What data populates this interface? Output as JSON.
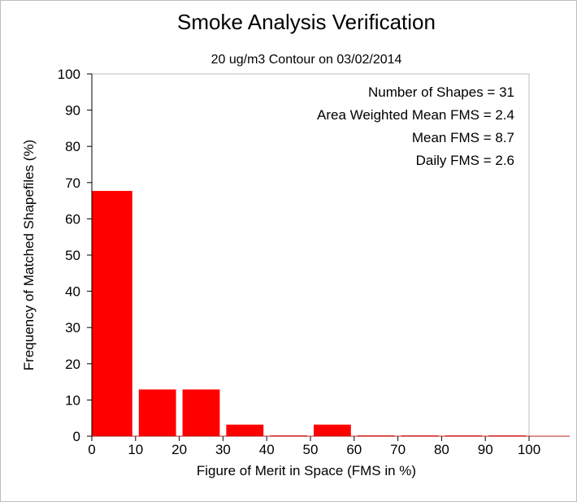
{
  "chart_data": {
    "type": "bar",
    "title": "Smoke Analysis Verification",
    "subtitle": "20 ug/m3 Contour on 03/02/2014",
    "xlabel": "Figure of Merit in Space (FMS in %)",
    "ylabel": "Frequency of Matched Shapefiles (%)",
    "xlim": [
      0,
      100
    ],
    "ylim": [
      0,
      100
    ],
    "x_ticks": [
      "0",
      "10",
      "20",
      "30",
      "40",
      "50",
      "60",
      "70",
      "80",
      "90",
      "100"
    ],
    "y_ticks": [
      "0",
      "10",
      "20",
      "30",
      "40",
      "50",
      "60",
      "70",
      "80",
      "90",
      "100"
    ],
    "bins": [
      {
        "start": 0,
        "end": 10,
        "value": 67.7
      },
      {
        "start": 10,
        "end": 20,
        "value": 12.9
      },
      {
        "start": 20,
        "end": 30,
        "value": 12.9
      },
      {
        "start": 30,
        "end": 40,
        "value": 3.2
      },
      {
        "start": 40,
        "end": 50,
        "value": 0
      },
      {
        "start": 50,
        "end": 60,
        "value": 3.2
      },
      {
        "start": 60,
        "end": 70,
        "value": 0
      },
      {
        "start": 70,
        "end": 80,
        "value": 0
      },
      {
        "start": 80,
        "end": 90,
        "value": 0
      },
      {
        "start": 90,
        "end": 100,
        "value": 0
      }
    ],
    "bar_color": "#ff0000",
    "grid": false,
    "annotations": [
      "Number of Shapes = 31",
      "Area Weighted Mean FMS = 2.4",
      "Mean FMS = 8.7",
      "Daily FMS = 2.6"
    ]
  }
}
